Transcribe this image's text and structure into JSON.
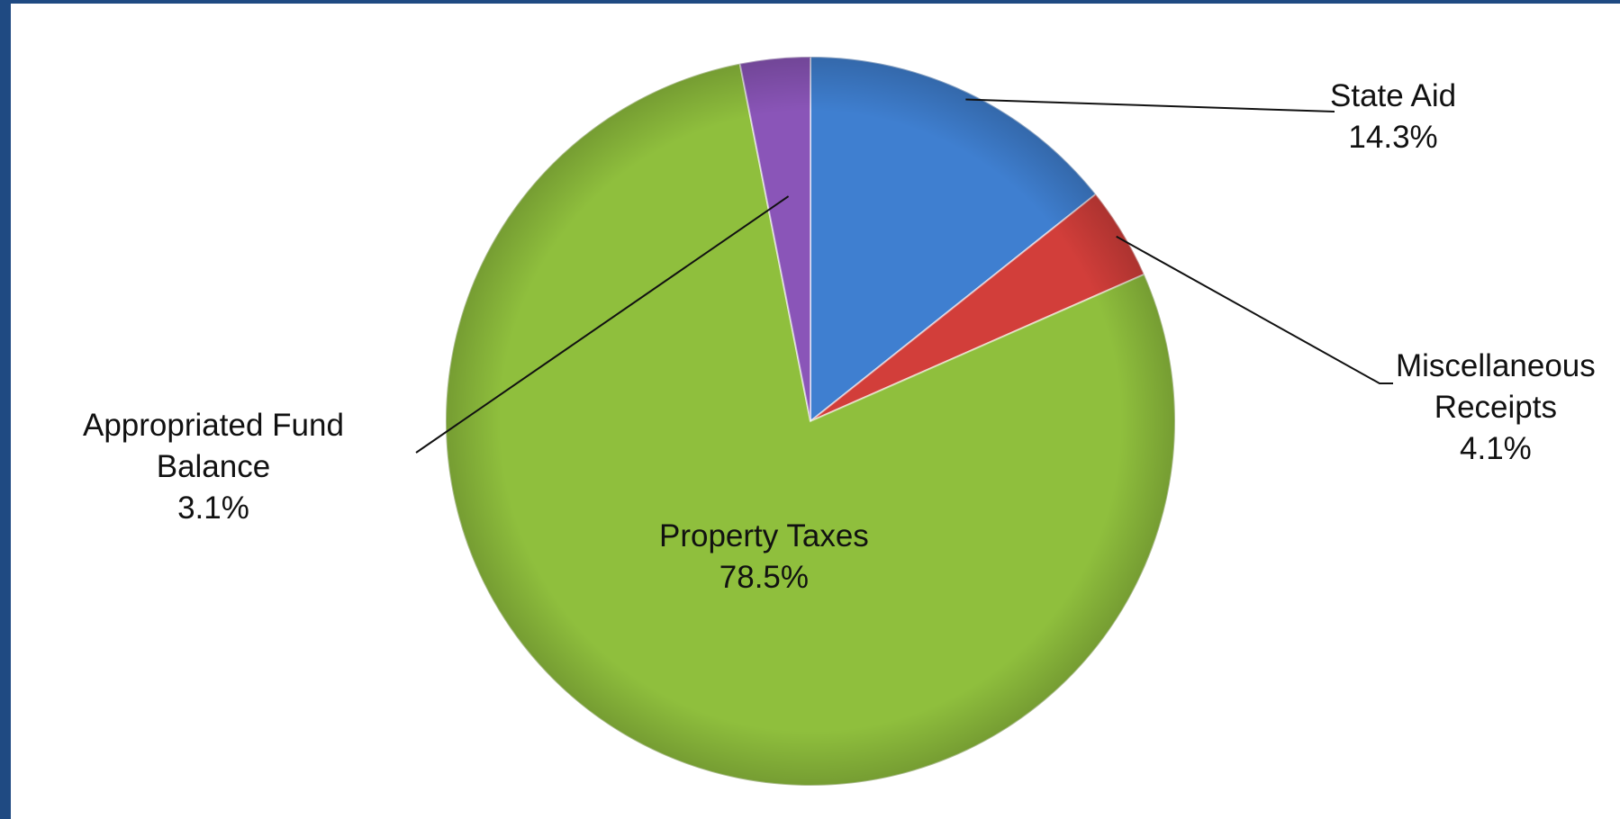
{
  "chart_data": {
    "type": "pie",
    "title": "",
    "slices": [
      {
        "label": "State Aid",
        "percent": "14.3%",
        "value": 14.3,
        "color": "#3f7fd0"
      },
      {
        "label": "Miscellaneous Receipts",
        "percent": "4.1%",
        "value": 4.1,
        "color": "#d23e3a"
      },
      {
        "label": "Property Taxes",
        "percent": "78.5%",
        "value": 78.5,
        "color": "#8fbf3d"
      },
      {
        "label": "Appropriated Fund Balance",
        "percent": "3.1%",
        "value": 3.1,
        "color": "#8a55b8"
      }
    ],
    "labels": {
      "state_aid": {
        "line1": "State Aid",
        "pct": "14.3%"
      },
      "misc": {
        "line1": "Miscellaneous",
        "line2": "Receipts",
        "pct": "4.1%"
      },
      "property": {
        "line1": "Property Taxes",
        "pct": "78.5%"
      },
      "fund": {
        "line1": "Appropriated Fund",
        "line2": "Balance",
        "pct": "3.1%"
      }
    },
    "legend": "none",
    "start_angle": "top, clockwise"
  }
}
